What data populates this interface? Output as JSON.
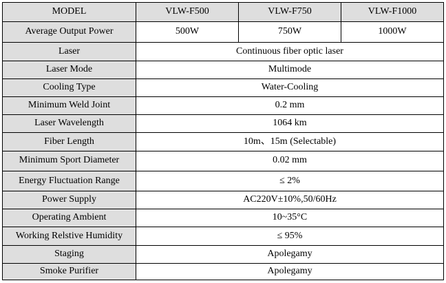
{
  "header": {
    "model_label": "MODEL",
    "models": [
      "VLW-F500",
      "VLW-F750",
      "VLW-F1000"
    ]
  },
  "power_row": {
    "label": "Average Output Power",
    "values": [
      "500W",
      "750W",
      "1000W"
    ]
  },
  "rows": [
    {
      "label": "Laser",
      "value": "Continuous fiber optic laser"
    },
    {
      "label": "Laser Mode",
      "value": "Multimode"
    },
    {
      "label": "Cooling Type",
      "value": "Water-Cooling"
    },
    {
      "label": "Minimum Weld Joint",
      "value": "0.2 mm"
    },
    {
      "label": "Laser Wavelength",
      "value": "1064 km"
    },
    {
      "label": "Fiber Length",
      "value": "10m、15m (Selectable)"
    },
    {
      "label": "Minimum Sport Diameter",
      "value": "0.02 mm"
    },
    {
      "label": "Energy Fluctuation Range",
      "value": "≤ 2%"
    },
    {
      "label": "Power Supply",
      "value": "AC220V±10%,50/60Hz"
    },
    {
      "label": "Operating Ambient",
      "value": "10~35°C"
    },
    {
      "label": "Working Relstive Humidity",
      "value": "≤ 95%"
    },
    {
      "label": "Staging",
      "value": "Apolegamy"
    },
    {
      "label": "Smoke Purifier",
      "value": "Apolegamy"
    }
  ]
}
